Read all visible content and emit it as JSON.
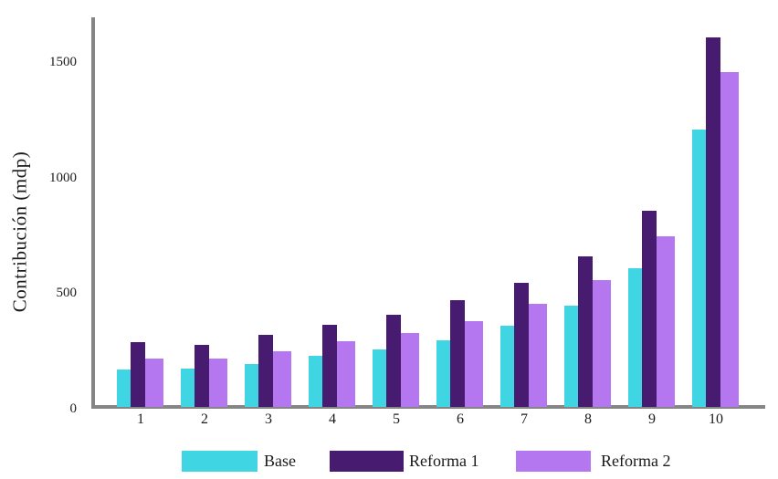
{
  "chart_data": {
    "type": "bar",
    "title": "",
    "ylabel": "Contribución (mdp)",
    "xlabel": "",
    "categories": [
      "1",
      "2",
      "3",
      "4",
      "5",
      "6",
      "7",
      "8",
      "9",
      "10"
    ],
    "series": [
      {
        "name": "Base",
        "color": "#3FD5E2",
        "values": [
          160,
          165,
          185,
          220,
          250,
          290,
          350,
          440,
          600,
          1200
        ]
      },
      {
        "name": "Reforma 1",
        "color": "#461B70",
        "values": [
          280,
          270,
          310,
          355,
          400,
          460,
          535,
          650,
          850,
          1600
        ]
      },
      {
        "name": "Reforma 2",
        "color": "#B577F0",
        "values": [
          210,
          210,
          240,
          285,
          320,
          370,
          445,
          550,
          740,
          1450
        ]
      }
    ],
    "ytick_labels": [
      "0",
      "500",
      "1000",
      "1500"
    ],
    "ytick_values": [
      0,
      500,
      1000,
      1500
    ],
    "ylim": [
      0,
      1680
    ],
    "grid": false,
    "legend_position": "bottom",
    "axis_color": "#858585",
    "text_color": "#1a1a1a"
  },
  "legend": {
    "items": [
      {
        "label": "Base"
      },
      {
        "label": "Reforma 1"
      },
      {
        "label": "Reforma 2"
      }
    ]
  }
}
